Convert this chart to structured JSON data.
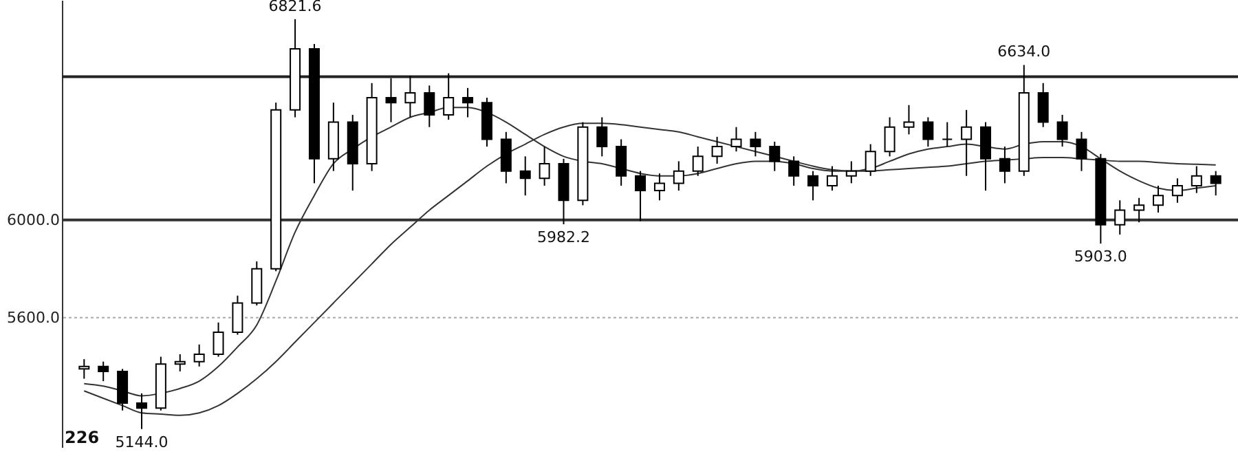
{
  "chart_data": {
    "type": "candlestick",
    "color": "#000000",
    "categories": [
      null,
      null,
      null,
      null,
      null,
      null,
      null,
      null,
      null,
      null,
      null,
      null,
      null,
      null,
      null,
      null,
      null,
      null,
      null,
      null,
      null,
      null,
      null,
      null,
      null,
      null,
      null,
      null,
      null,
      null,
      null,
      null,
      null,
      null,
      null,
      null,
      null,
      null,
      null,
      null,
      null,
      null,
      null,
      null,
      null,
      null,
      null,
      null,
      null,
      null,
      null,
      null,
      null,
      null,
      null,
      null,
      null,
      null,
      null,
      null
    ],
    "ohlc": [
      [
        5390,
        5430,
        5350,
        5400
      ],
      [
        5400,
        5420,
        5340,
        5380
      ],
      [
        5380,
        5390,
        5220,
        5250
      ],
      [
        5250,
        5290,
        5144,
        5230
      ],
      [
        5230,
        5440,
        5220,
        5410
      ],
      [
        5410,
        5450,
        5380,
        5420
      ],
      [
        5420,
        5490,
        5400,
        5450
      ],
      [
        5450,
        5580,
        5440,
        5540
      ],
      [
        5540,
        5690,
        5530,
        5660
      ],
      [
        5660,
        5830,
        5650,
        5800
      ],
      [
        5800,
        6480,
        5790,
        6450
      ],
      [
        6450,
        6821.6,
        6420,
        6700
      ],
      [
        6700,
        6720,
        6150,
        6250
      ],
      [
        6250,
        6480,
        6200,
        6400
      ],
      [
        6400,
        6430,
        6120,
        6230
      ],
      [
        6230,
        6560,
        6200,
        6500
      ],
      [
        6500,
        6580,
        6400,
        6480
      ],
      [
        6480,
        6590,
        6420,
        6520
      ],
      [
        6520,
        6550,
        6380,
        6430
      ],
      [
        6430,
        6600,
        6410,
        6500
      ],
      [
        6500,
        6540,
        6420,
        6480
      ],
      [
        6480,
        6500,
        6300,
        6330
      ],
      [
        6330,
        6360,
        6150,
        6200
      ],
      [
        6200,
        6260,
        6100,
        6170
      ],
      [
        6170,
        6300,
        6140,
        6230
      ],
      [
        6230,
        6250,
        5982.2,
        6080
      ],
      [
        6080,
        6400,
        6060,
        6380
      ],
      [
        6380,
        6420,
        6260,
        6300
      ],
      [
        6300,
        6330,
        6140,
        6180
      ],
      [
        6180,
        6200,
        5995,
        6120
      ],
      [
        6120,
        6190,
        6080,
        6150
      ],
      [
        6150,
        6240,
        6120,
        6200
      ],
      [
        6200,
        6300,
        6180,
        6260
      ],
      [
        6260,
        6340,
        6230,
        6300
      ],
      [
        6300,
        6380,
        6280,
        6330
      ],
      [
        6330,
        6360,
        6260,
        6300
      ],
      [
        6300,
        6320,
        6200,
        6240
      ],
      [
        6240,
        6260,
        6140,
        6180
      ],
      [
        6180,
        6200,
        6080,
        6140
      ],
      [
        6140,
        6220,
        6120,
        6180
      ],
      [
        6180,
        6240,
        6150,
        6200
      ],
      [
        6200,
        6310,
        6180,
        6280
      ],
      [
        6280,
        6420,
        6260,
        6380
      ],
      [
        6380,
        6470,
        6350,
        6400
      ],
      [
        6400,
        6420,
        6300,
        6330
      ],
      [
        6330,
        6400,
        6300,
        6330
      ],
      [
        6330,
        6450,
        6180,
        6380
      ],
      [
        6380,
        6400,
        6120,
        6250
      ],
      [
        6250,
        6300,
        6150,
        6200
      ],
      [
        6200,
        6634,
        6180,
        6520
      ],
      [
        6520,
        6560,
        6380,
        6400
      ],
      [
        6400,
        6430,
        6300,
        6330
      ],
      [
        6330,
        6360,
        6200,
        6250
      ],
      [
        6250,
        6270,
        5903,
        5980
      ],
      [
        5980,
        6080,
        5940,
        6040
      ],
      [
        6040,
        6090,
        5990,
        6060
      ],
      [
        6060,
        6140,
        6030,
        6100
      ],
      [
        6100,
        6170,
        6070,
        6140
      ],
      [
        6140,
        6220,
        6110,
        6180
      ],
      [
        6180,
        6200,
        6100,
        6150
      ]
    ],
    "series": [
      {
        "type": "line",
        "color": "#333333",
        "values": [
          5330,
          5320,
          5300,
          5280,
          5290,
          5310,
          5340,
          5400,
          5480,
          5570,
          5750,
          5950,
          6100,
          6230,
          6290,
          6340,
          6380,
          6420,
          6440,
          6460,
          6460,
          6440,
          6400,
          6350,
          6300,
          6260,
          6240,
          6230,
          6210,
          6190,
          6180,
          6180,
          6190,
          6210,
          6230,
          6240,
          6240,
          6230,
          6210,
          6200,
          6200,
          6210,
          6240,
          6270,
          6290,
          6300,
          6310,
          6300,
          6290,
          6310,
          6320,
          6320,
          6300,
          6250,
          6200,
          6160,
          6130,
          6120,
          6130,
          6140
        ]
      },
      {
        "type": "line",
        "color": "#333333",
        "values": [
          5300,
          5270,
          5240,
          5210,
          5205,
          5200,
          5210,
          5240,
          5290,
          5350,
          5420,
          5500,
          5580,
          5660,
          5740,
          5820,
          5900,
          5970,
          6040,
          6100,
          6160,
          6220,
          6270,
          6310,
          6350,
          6380,
          6395,
          6395,
          6390,
          6380,
          6370,
          6360,
          6340,
          6320,
          6300,
          6280,
          6260,
          6240,
          6220,
          6205,
          6200,
          6200,
          6205,
          6210,
          6215,
          6220,
          6230,
          6240,
          6245,
          6250,
          6255,
          6255,
          6250,
          6245,
          6240,
          6240,
          6235,
          6230,
          6228,
          6225
        ]
      }
    ],
    "ylim": [
      5070,
      6900
    ],
    "yticks": [
      {
        "value": 5600,
        "label": "5600.0"
      },
      {
        "value": 6000,
        "label": "6000.0"
      }
    ],
    "ref_lines": [
      {
        "axis": "y",
        "value": 6586,
        "color": "#222222"
      },
      {
        "axis": "y",
        "value": 6000,
        "color": "#333333"
      },
      {
        "axis": "y",
        "value": 5600,
        "color": "#aaaaaa",
        "line_style": "dotted"
      }
    ],
    "annotations": [
      {
        "text": "6821.6",
        "y": 6821.6
      },
      {
        "text": "6634.0",
        "y": 6634
      },
      {
        "text": "5982.2",
        "y": 5982.2
      },
      {
        "text": "5903.0",
        "y": 5903
      },
      {
        "text": "5144.0",
        "y": 5144
      },
      "226"
    ]
  }
}
